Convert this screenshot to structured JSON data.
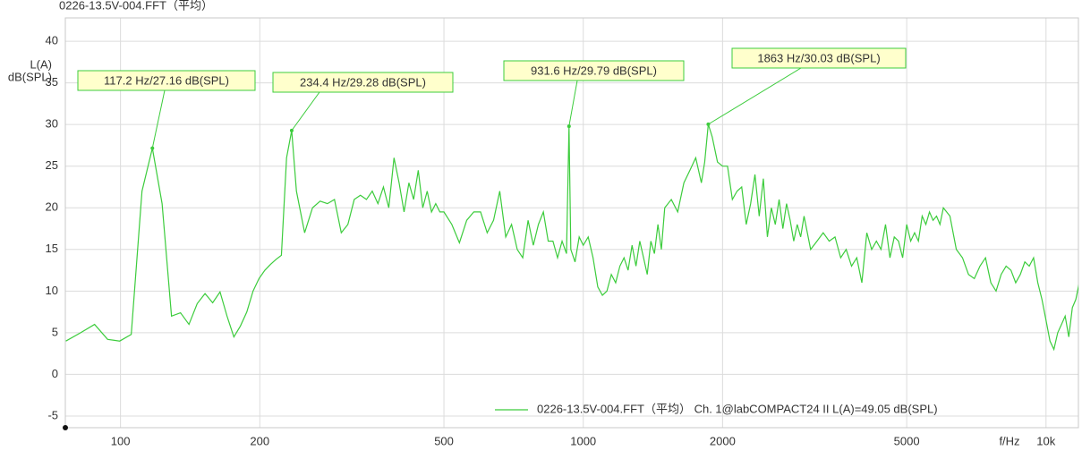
{
  "chart_data": {
    "type": "line",
    "title": "0226-13.5V-004.FFT（平均）",
    "ylabel": [
      "L(A)",
      "dB(SPL)"
    ],
    "xlabel": "f/Hz",
    "xscale": "log",
    "grid": true,
    "legend": "lower right",
    "xlim": [
      76,
      11750
    ],
    "ylim": [
      -6.4,
      42.8
    ],
    "xticks": [
      100,
      200,
      500,
      1000,
      2000,
      5000,
      {
        "value": 10000,
        "label": "10k"
      }
    ],
    "yticks": [
      -5,
      0,
      5,
      10,
      15,
      20,
      25,
      30,
      35,
      40
    ],
    "x": [
      76.2,
      82.0,
      87.9,
      93.8,
      99.6,
      105.5,
      111.3,
      117.2,
      123.0,
      128.9,
      134.8,
      140.6,
      146.5,
      152.3,
      158.2,
      164.1,
      169.9,
      175.8,
      181.6,
      187.5,
      193.4,
      199.2,
      205.1,
      210.9,
      216.8,
      222.7,
      228.5,
      234.4,
      240,
      250,
      260,
      270,
      280,
      290,
      300,
      310,
      320,
      330,
      340,
      350,
      360,
      370,
      380,
      390,
      400,
      410,
      420,
      430,
      440,
      450,
      460,
      470,
      480,
      490,
      500,
      520,
      540,
      560,
      580,
      600,
      620,
      640,
      660,
      680,
      700,
      720,
      740,
      760,
      780,
      800,
      820,
      840,
      860,
      880,
      900,
      920,
      931.6,
      940,
      960,
      980,
      1000,
      1025,
      1050,
      1075,
      1100,
      1125,
      1150,
      1175,
      1200,
      1225,
      1250,
      1275,
      1300,
      1325,
      1350,
      1375,
      1400,
      1425,
      1450,
      1475,
      1500,
      1550,
      1600,
      1650,
      1700,
      1750,
      1800,
      1830,
      1863,
      1900,
      1950,
      2000,
      2050,
      2100,
      2150,
      2200,
      2250,
      2300,
      2350,
      2400,
      2450,
      2500,
      2550,
      2600,
      2650,
      2700,
      2750,
      2800,
      2850,
      2900,
      2950,
      3000,
      3100,
      3200,
      3300,
      3400,
      3500,
      3600,
      3700,
      3800,
      3900,
      4000,
      4100,
      4200,
      4300,
      4400,
      4500,
      4600,
      4700,
      4800,
      4900,
      5000,
      5100,
      5200,
      5300,
      5400,
      5500,
      5600,
      5700,
      5800,
      5900,
      6000,
      6200,
      6400,
      6600,
      6800,
      7000,
      7200,
      7400,
      7600,
      7800,
      8000,
      8200,
      8400,
      8600,
      8800,
      9000,
      9200,
      9400,
      9600,
      9800,
      10000,
      10200,
      10400,
      10600,
      10800,
      11000,
      11200,
      11400,
      11600,
      11800
    ],
    "series": [
      {
        "name": "0226-13.5V-004.FFT（平均） Ch. 1@labCOMPACT24 II L(A)=49.05 dB(SPL)",
        "color": "#3ccc3c",
        "values": [
          4.0,
          5.0,
          6.0,
          4.2,
          4.0,
          4.8,
          22.0,
          27.16,
          20.5,
          7.0,
          7.4,
          6.0,
          8.5,
          9.7,
          8.6,
          9.9,
          7.0,
          4.5,
          5.8,
          7.5,
          10.0,
          11.5,
          12.5,
          13.2,
          13.8,
          14.3,
          26.0,
          29.28,
          22,
          17,
          20,
          20.8,
          20.5,
          21,
          17,
          18,
          21,
          21.5,
          21,
          22,
          20.5,
          22.5,
          20,
          26,
          23,
          19.5,
          23,
          21,
          24.5,
          20,
          22,
          19.5,
          20.5,
          19.5,
          19.5,
          18,
          15.8,
          18.5,
          19.5,
          19.5,
          17,
          18.5,
          22,
          16.5,
          18,
          15,
          14,
          18.5,
          15.5,
          18,
          19.5,
          16,
          16,
          14,
          16,
          14.5,
          29.79,
          15,
          13.5,
          16.5,
          15.5,
          16.5,
          14,
          10.5,
          9.5,
          10,
          12,
          11,
          13,
          14,
          12.5,
          15.5,
          13,
          16,
          14,
          12,
          16,
          14.5,
          18,
          15,
          20,
          21,
          19.5,
          23,
          24.5,
          26,
          23,
          25.5,
          30.03,
          28.5,
          25.5,
          25,
          25,
          21,
          22,
          22.5,
          18,
          20.5,
          24,
          19,
          23.5,
          16.5,
          20,
          18,
          21,
          17.5,
          20.5,
          18.5,
          16,
          18,
          16.5,
          19,
          15,
          16,
          17,
          16,
          16.5,
          14,
          15,
          13,
          14,
          11,
          17,
          15,
          16,
          15,
          18,
          14,
          16.5,
          16,
          14,
          18,
          16,
          17,
          16,
          19,
          18,
          19.5,
          18.5,
          19,
          18,
          20,
          19,
          15,
          14,
          12,
          11.5,
          13,
          14,
          11,
          10,
          12,
          13,
          12.5,
          11,
          12,
          13.5,
          13,
          14,
          11,
          9,
          6.5,
          4,
          3,
          5,
          6,
          7,
          4.5,
          8,
          9,
          11
        ]
      }
    ],
    "annotations": [
      {
        "text": "117.2 Hz/27.16 dB(SPL)",
        "x": 117.2,
        "y": 27.16
      },
      {
        "text": "234.4 Hz/29.28 dB(SPL)",
        "x": 234.4,
        "y": 29.28
      },
      {
        "text": "931.6 Hz/29.79 dB(SPL)",
        "x": 931.6,
        "y": 29.79
      },
      {
        "text": "1863 Hz/30.03 dB(SPL)",
        "x": 1863,
        "y": 30.03
      }
    ]
  }
}
